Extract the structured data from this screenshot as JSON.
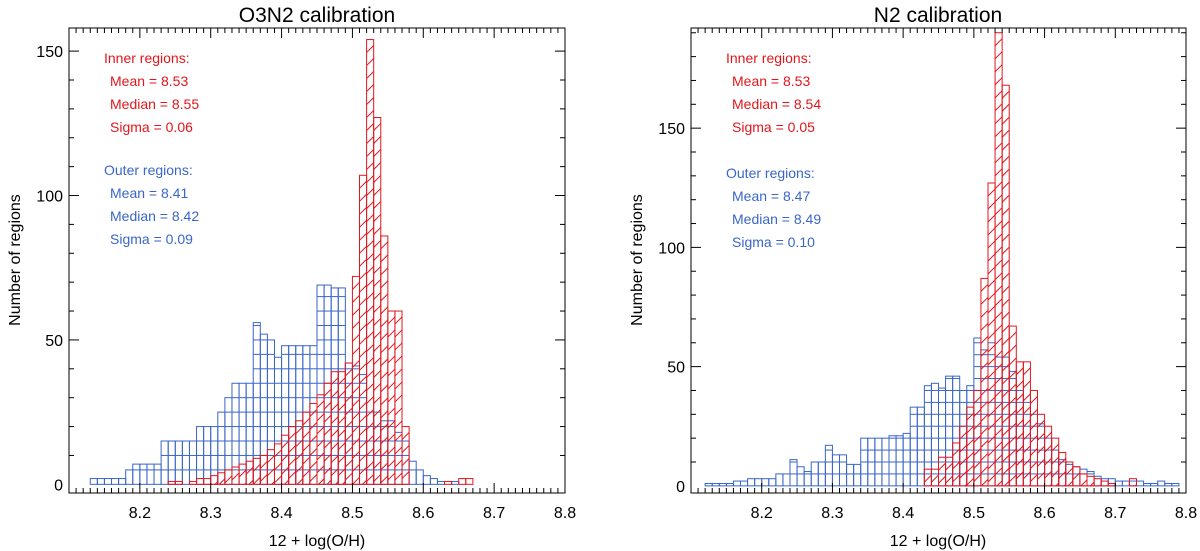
{
  "chart_data": [
    {
      "type": "histogram",
      "title": "O3N2 calibration",
      "xlabel": "12 + log(O/H)",
      "ylabel": "Number of regions",
      "xlim": [
        8.1,
        8.8
      ],
      "ylim": [
        -3,
        158
      ],
      "xticks": [
        "8.2",
        "8.3",
        "8.4",
        "8.5",
        "8.6",
        "8.7",
        "8.8"
      ],
      "yticks": [
        "0",
        "50",
        "100",
        "150"
      ],
      "bin_width": 0.01,
      "series": [
        {
          "name": "Outer regions",
          "color": "#3a66c9",
          "fill": "horizontal-lines",
          "bin_starts": [
            8.13,
            8.14,
            8.15,
            8.16,
            8.17,
            8.18,
            8.19,
            8.2,
            8.21,
            8.22,
            8.23,
            8.24,
            8.25,
            8.26,
            8.27,
            8.28,
            8.29,
            8.3,
            8.31,
            8.32,
            8.33,
            8.34,
            8.35,
            8.36,
            8.37,
            8.38,
            8.39,
            8.4,
            8.41,
            8.42,
            8.43,
            8.44,
            8.45,
            8.46,
            8.47,
            8.48,
            8.49,
            8.5,
            8.51,
            8.52,
            8.53,
            8.54,
            8.55,
            8.56,
            8.57,
            8.58,
            8.59,
            8.6,
            8.61,
            8.62,
            8.63,
            8.64,
            8.65
          ],
          "counts": [
            2,
            2,
            2,
            2,
            2,
            5,
            7,
            7,
            7,
            7,
            15,
            15,
            15,
            15,
            15,
            20,
            20,
            20,
            25,
            30,
            35,
            35,
            35,
            56,
            52,
            50,
            44,
            48,
            48,
            48,
            48,
            48,
            69,
            69,
            68,
            68,
            42,
            41,
            38,
            25,
            25,
            22,
            22,
            18,
            15,
            8,
            5,
            3,
            2,
            1,
            0,
            1,
            0
          ]
        },
        {
          "name": "Inner regions",
          "color": "#e3161c",
          "fill": "diagonal-lines",
          "bin_starts": [
            8.2,
            8.21,
            8.22,
            8.23,
            8.24,
            8.25,
            8.26,
            8.27,
            8.28,
            8.29,
            8.3,
            8.31,
            8.32,
            8.33,
            8.34,
            8.35,
            8.36,
            8.37,
            8.38,
            8.39,
            8.4,
            8.41,
            8.42,
            8.43,
            8.44,
            8.45,
            8.46,
            8.47,
            8.48,
            8.49,
            8.5,
            8.51,
            8.52,
            8.53,
            8.54,
            8.55,
            8.56,
            8.57,
            8.58,
            8.59,
            8.6,
            8.61,
            8.62,
            8.63,
            8.64,
            8.65,
            8.66
          ],
          "counts": [
            0,
            0,
            0,
            0,
            1,
            1,
            0,
            1,
            2,
            2,
            3,
            4,
            5,
            6,
            7,
            8,
            9,
            10,
            12,
            14,
            17,
            20,
            22,
            25,
            28,
            31,
            35,
            39,
            39,
            42,
            72,
            107,
            154,
            127,
            86,
            60,
            60,
            20,
            0,
            0,
            0,
            0,
            0,
            1,
            0,
            2,
            2
          ]
        }
      ],
      "annotations": {
        "inner": {
          "title": "Inner regions:",
          "mean": "Mean =  8.53",
          "median": "Median = 8.55",
          "sigma": "Sigma = 0.06"
        },
        "outer": {
          "title": "Outer regions:",
          "mean": "Mean =  8.41",
          "median": "Median = 8.42",
          "sigma": "Sigma = 0.09"
        }
      }
    },
    {
      "type": "histogram",
      "title": "N2 calibration",
      "xlabel": "12 + log(O/H)",
      "ylabel": "Number of regions",
      "xlim": [
        8.1,
        8.8
      ],
      "ylim": [
        -3,
        192
      ],
      "xticks": [
        "8.2",
        "8.3",
        "8.4",
        "8.5",
        "8.6",
        "8.7",
        "8.8"
      ],
      "yticks": [
        "0",
        "50",
        "100",
        "150"
      ],
      "bin_width": 0.01,
      "series": [
        {
          "name": "Outer regions",
          "color": "#3a66c9",
          "fill": "horizontal-lines",
          "bin_starts": [
            8.12,
            8.13,
            8.14,
            8.15,
            8.16,
            8.17,
            8.18,
            8.19,
            8.2,
            8.21,
            8.22,
            8.23,
            8.24,
            8.25,
            8.26,
            8.27,
            8.28,
            8.29,
            8.3,
            8.31,
            8.32,
            8.33,
            8.34,
            8.35,
            8.36,
            8.37,
            8.38,
            8.39,
            8.4,
            8.41,
            8.42,
            8.43,
            8.44,
            8.45,
            8.46,
            8.47,
            8.48,
            8.49,
            8.5,
            8.51,
            8.52,
            8.53,
            8.54,
            8.55,
            8.56,
            8.57,
            8.58,
            8.59,
            8.6,
            8.61,
            8.62,
            8.63,
            8.64,
            8.65,
            8.66,
            8.67,
            8.68,
            8.69,
            8.7,
            8.71,
            8.72,
            8.73,
            8.74,
            8.75,
            8.76,
            8.77,
            8.78,
            8.79
          ],
          "counts": [
            1,
            1,
            1,
            1,
            2,
            2,
            3,
            3,
            3,
            3,
            5,
            5,
            11,
            8,
            6,
            10,
            10,
            17,
            13,
            13,
            9,
            9,
            20,
            20,
            20,
            20,
            21,
            21,
            22,
            33,
            33,
            42,
            43,
            41,
            46,
            46,
            40,
            42,
            62,
            57,
            60,
            54,
            54,
            48,
            40,
            35,
            30,
            26,
            20,
            15,
            11,
            9,
            8,
            7,
            6,
            4,
            3,
            3,
            2,
            2,
            2,
            2,
            1,
            1,
            2,
            1,
            1,
            0
          ]
        },
        {
          "name": "Inner regions",
          "color": "#e3161c",
          "fill": "diagonal-lines",
          "bin_starts": [
            8.43,
            8.44,
            8.45,
            8.46,
            8.47,
            8.48,
            8.49,
            8.5,
            8.51,
            8.52,
            8.53,
            8.54,
            8.55,
            8.56,
            8.57,
            8.58,
            8.59,
            8.6,
            8.61,
            8.62,
            8.63,
            8.64,
            8.65,
            8.66,
            8.67,
            8.68,
            8.69,
            8.7,
            8.71,
            8.72
          ],
          "counts": [
            7,
            7,
            12,
            12,
            18,
            25,
            33,
            40,
            87,
            127,
            190,
            168,
            67,
            52,
            52,
            40,
            30,
            25,
            20,
            14,
            10,
            8,
            5,
            4,
            3,
            2,
            1,
            0,
            0,
            3
          ]
        }
      ],
      "annotations": {
        "inner": {
          "title": "Inner regions:",
          "mean": "Mean =  8.53",
          "median": "Median = 8.54",
          "sigma": "Sigma = 0.05"
        },
        "outer": {
          "title": "Outer regions:",
          "mean": "Mean =  8.47",
          "median": "Median = 8.49",
          "sigma": "Sigma = 0.10"
        }
      }
    }
  ]
}
